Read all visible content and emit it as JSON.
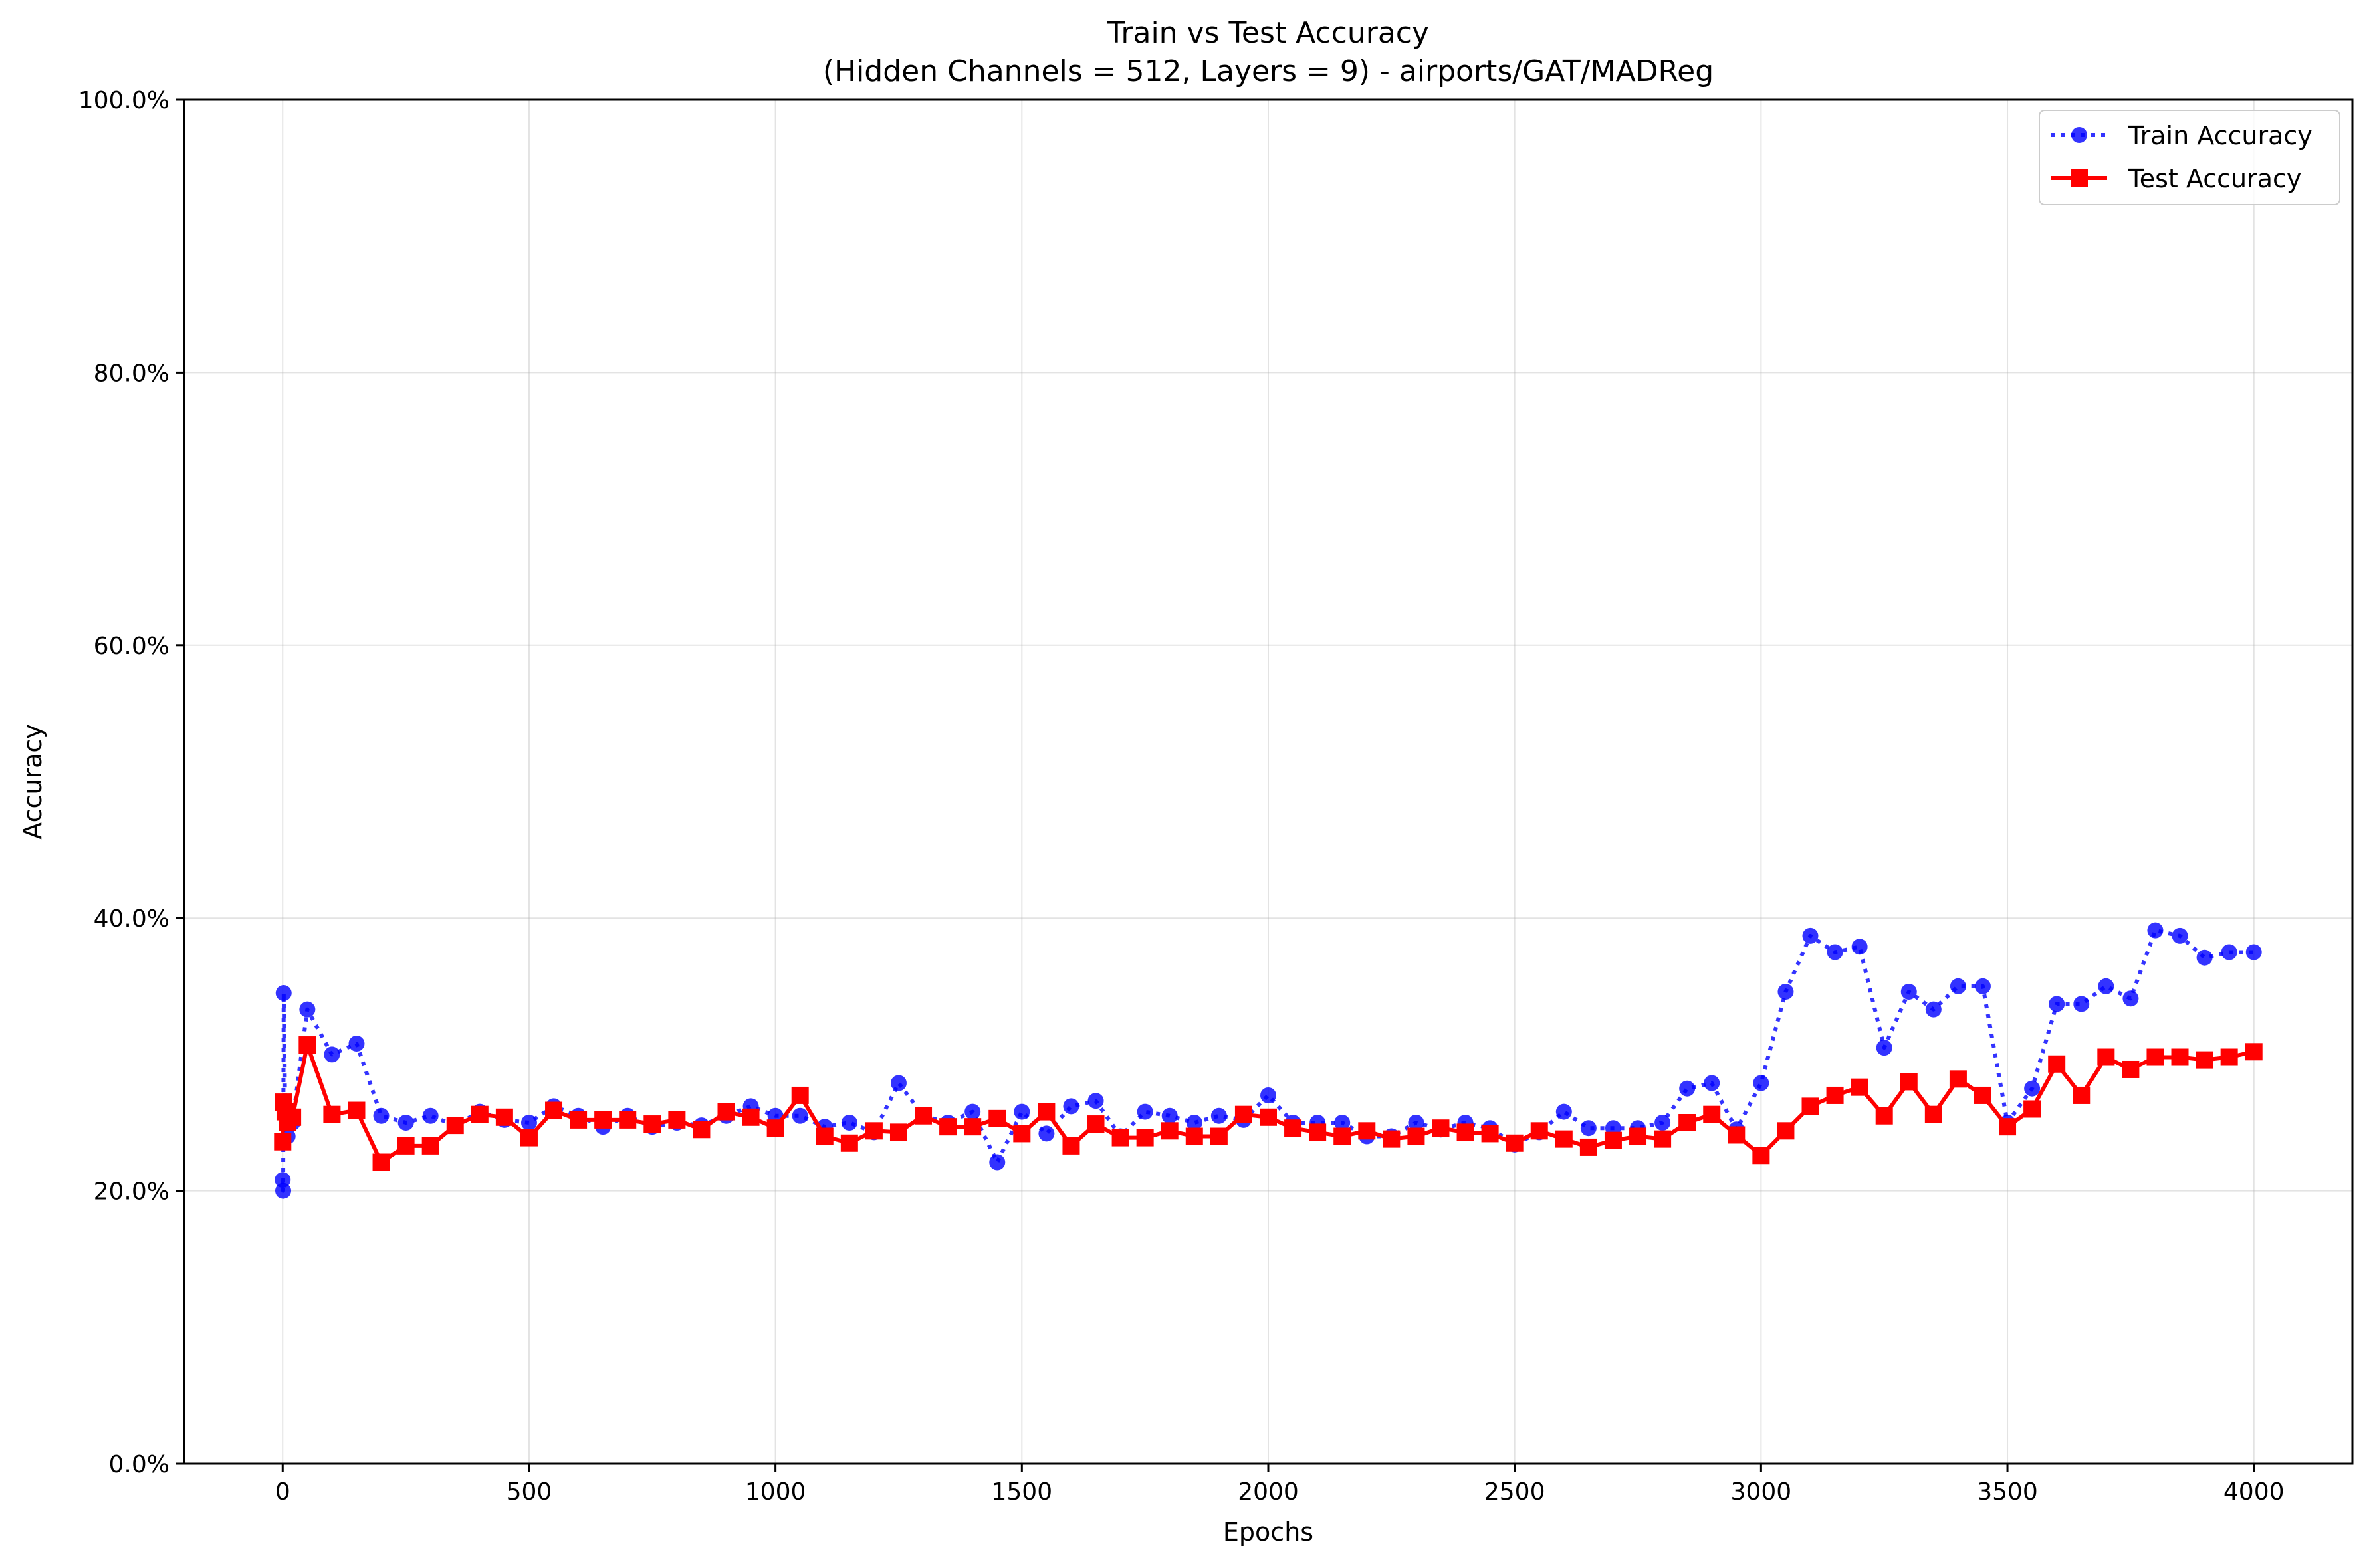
{
  "chart_data": {
    "type": "line",
    "title": "Train vs Test Accuracy",
    "subtitle": "(Hidden Channels = 512, Layers = 9) - airports/GAT/MADReg",
    "xlabel": "Epochs",
    "ylabel": "Accuracy",
    "xlim": [
      -200,
      4200
    ],
    "ylim": [
      0,
      1.0
    ],
    "xticks": [
      0,
      500,
      1000,
      1500,
      2000,
      2500,
      3000,
      3500,
      4000
    ],
    "xtick_labels": [
      "0",
      "500",
      "1000",
      "1500",
      "2000",
      "2500",
      "3000",
      "3500",
      "4000"
    ],
    "yticks": [
      0,
      0.2,
      0.4,
      0.6,
      0.8,
      1.0
    ],
    "ytick_labels": [
      "0.0%",
      "20.0%",
      "40.0%",
      "60.0%",
      "80.0%",
      "100.0%"
    ],
    "grid": true,
    "legend_position": "top-right",
    "series": [
      {
        "name": "Train Accuracy",
        "color": "#0000ff",
        "linestyle": "dotted",
        "marker": "circle",
        "points": [
          [
            0,
            0.208
          ],
          [
            1,
            0.2
          ],
          [
            2,
            0.345
          ],
          [
            5,
            0.26
          ],
          [
            10,
            0.24
          ],
          [
            20,
            0.25
          ],
          [
            50,
            0.333
          ],
          [
            100,
            0.3
          ],
          [
            150,
            0.308
          ],
          [
            200,
            0.255
          ],
          [
            250,
            0.25
          ],
          [
            300,
            0.255
          ],
          [
            350,
            0.248
          ],
          [
            400,
            0.258
          ],
          [
            450,
            0.252
          ],
          [
            500,
            0.25
          ],
          [
            550,
            0.262
          ],
          [
            600,
            0.255
          ],
          [
            650,
            0.247
          ],
          [
            700,
            0.255
          ],
          [
            750,
            0.247
          ],
          [
            800,
            0.25
          ],
          [
            850,
            0.248
          ],
          [
            900,
            0.255
          ],
          [
            950,
            0.262
          ],
          [
            1000,
            0.255
          ],
          [
            1050,
            0.255
          ],
          [
            1100,
            0.247
          ],
          [
            1150,
            0.25
          ],
          [
            1200,
            0.243
          ],
          [
            1250,
            0.279
          ],
          [
            1300,
            0.255
          ],
          [
            1350,
            0.25
          ],
          [
            1400,
            0.258
          ],
          [
            1450,
            0.221
          ],
          [
            1500,
            0.258
          ],
          [
            1550,
            0.242
          ],
          [
            1600,
            0.262
          ],
          [
            1650,
            0.266
          ],
          [
            1700,
            0.24
          ],
          [
            1750,
            0.258
          ],
          [
            1800,
            0.255
          ],
          [
            1850,
            0.25
          ],
          [
            1900,
            0.255
          ],
          [
            1950,
            0.252
          ],
          [
            2000,
            0.27
          ],
          [
            2050,
            0.25
          ],
          [
            2100,
            0.25
          ],
          [
            2150,
            0.25
          ],
          [
            2200,
            0.24
          ],
          [
            2250,
            0.24
          ],
          [
            2300,
            0.25
          ],
          [
            2350,
            0.245
          ],
          [
            2400,
            0.25
          ],
          [
            2450,
            0.246
          ],
          [
            2500,
            0.234
          ],
          [
            2550,
            0.243
          ],
          [
            2600,
            0.258
          ],
          [
            2650,
            0.246
          ],
          [
            2700,
            0.246
          ],
          [
            2750,
            0.246
          ],
          [
            2800,
            0.25
          ],
          [
            2850,
            0.275
          ],
          [
            2900,
            0.279
          ],
          [
            2950,
            0.245
          ],
          [
            3000,
            0.279
          ],
          [
            3050,
            0.346
          ],
          [
            3100,
            0.387
          ],
          [
            3150,
            0.375
          ],
          [
            3200,
            0.379
          ],
          [
            3250,
            0.305
          ],
          [
            3300,
            0.346
          ],
          [
            3350,
            0.333
          ],
          [
            3400,
            0.35
          ],
          [
            3450,
            0.35
          ],
          [
            3500,
            0.25
          ],
          [
            3550,
            0.275
          ],
          [
            3600,
            0.337
          ],
          [
            3650,
            0.337
          ],
          [
            3700,
            0.35
          ],
          [
            3750,
            0.341
          ],
          [
            3800,
            0.391
          ],
          [
            3850,
            0.387
          ],
          [
            3900,
            0.371
          ],
          [
            3950,
            0.375
          ],
          [
            4000,
            0.375
          ]
        ]
      },
      {
        "name": "Test Accuracy",
        "color": "#ff0000",
        "linestyle": "solid",
        "marker": "square",
        "points": [
          [
            0,
            0.236
          ],
          [
            1,
            0.265
          ],
          [
            2,
            0.265
          ],
          [
            5,
            0.258
          ],
          [
            10,
            0.25
          ],
          [
            20,
            0.254
          ],
          [
            50,
            0.307
          ],
          [
            100,
            0.256
          ],
          [
            150,
            0.259
          ],
          [
            200,
            0.221
          ],
          [
            250,
            0.233
          ],
          [
            300,
            0.233
          ],
          [
            350,
            0.248
          ],
          [
            400,
            0.256
          ],
          [
            450,
            0.254
          ],
          [
            500,
            0.239
          ],
          [
            550,
            0.259
          ],
          [
            600,
            0.252
          ],
          [
            650,
            0.252
          ],
          [
            700,
            0.252
          ],
          [
            750,
            0.249
          ],
          [
            800,
            0.252
          ],
          [
            850,
            0.245
          ],
          [
            900,
            0.258
          ],
          [
            950,
            0.254
          ],
          [
            1000,
            0.246
          ],
          [
            1050,
            0.27
          ],
          [
            1100,
            0.24
          ],
          [
            1150,
            0.235
          ],
          [
            1200,
            0.244
          ],
          [
            1250,
            0.243
          ],
          [
            1300,
            0.255
          ],
          [
            1350,
            0.247
          ],
          [
            1400,
            0.247
          ],
          [
            1450,
            0.253
          ],
          [
            1500,
            0.242
          ],
          [
            1550,
            0.258
          ],
          [
            1600,
            0.233
          ],
          [
            1650,
            0.249
          ],
          [
            1700,
            0.239
          ],
          [
            1750,
            0.239
          ],
          [
            1800,
            0.244
          ],
          [
            1850,
            0.24
          ],
          [
            1900,
            0.24
          ],
          [
            1950,
            0.256
          ],
          [
            2000,
            0.254
          ],
          [
            2050,
            0.246
          ],
          [
            2100,
            0.243
          ],
          [
            2150,
            0.24
          ],
          [
            2200,
            0.244
          ],
          [
            2250,
            0.238
          ],
          [
            2300,
            0.24
          ],
          [
            2350,
            0.246
          ],
          [
            2400,
            0.243
          ],
          [
            2450,
            0.242
          ],
          [
            2500,
            0.235
          ],
          [
            2550,
            0.244
          ],
          [
            2600,
            0.238
          ],
          [
            2650,
            0.232
          ],
          [
            2700,
            0.237
          ],
          [
            2750,
            0.24
          ],
          [
            2800,
            0.238
          ],
          [
            2850,
            0.25
          ],
          [
            2900,
            0.256
          ],
          [
            2950,
            0.241
          ],
          [
            3000,
            0.226
          ],
          [
            3050,
            0.244
          ],
          [
            3100,
            0.262
          ],
          [
            3150,
            0.27
          ],
          [
            3200,
            0.276
          ],
          [
            3250,
            0.255
          ],
          [
            3300,
            0.28
          ],
          [
            3350,
            0.256
          ],
          [
            3400,
            0.282
          ],
          [
            3450,
            0.27
          ],
          [
            3500,
            0.247
          ],
          [
            3550,
            0.26
          ],
          [
            3600,
            0.293
          ],
          [
            3650,
            0.27
          ],
          [
            3700,
            0.298
          ],
          [
            3750,
            0.289
          ],
          [
            3800,
            0.298
          ],
          [
            3850,
            0.298
          ],
          [
            3900,
            0.296
          ],
          [
            3950,
            0.298
          ],
          [
            4000,
            0.302
          ]
        ]
      }
    ]
  }
}
